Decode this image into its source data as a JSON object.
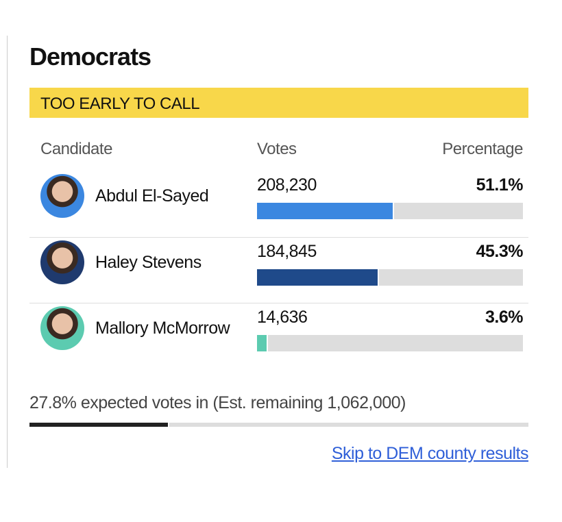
{
  "title": "Democrats",
  "status": "TOO EARLY TO CALL",
  "headers": [
    "Candidate",
    "Votes",
    "Percentage"
  ],
  "candidates": [
    {
      "name": "Abdul El-Sayed",
      "votes": "208,230",
      "percentage": 51.1,
      "percentage_label": "51.1%",
      "color": "#3b87e0"
    },
    {
      "name": "Haley Stevens",
      "votes": "184,845",
      "percentage": 45.3,
      "percentage_label": "45.3%",
      "color": "#1f4a8a"
    },
    {
      "name": "Mallory McMorrow",
      "votes": "14,636",
      "percentage": 3.6,
      "percentage_label": "3.6%",
      "color": "#5ccbb0"
    }
  ],
  "expected_text": "27.8% expected votes in (Est. remaining 1,062,000)",
  "expected_votes_in": 27.8,
  "link": "Skip to DEM county results"
}
